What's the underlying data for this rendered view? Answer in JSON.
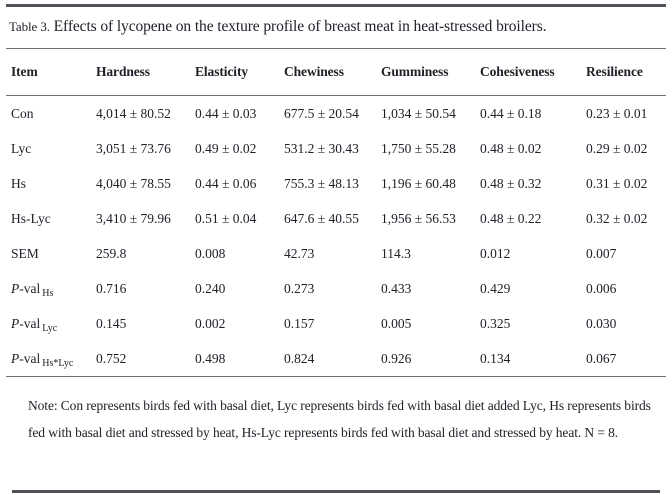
{
  "title": {
    "label": "Table 3.",
    "text": "Effects of lycopene on the texture profile of breast meat in heat-stressed broilers."
  },
  "table": {
    "columns": [
      "Item",
      "Hardness",
      "Elasticity",
      "Chewiness",
      "Gumminess",
      "Cohesiveness",
      "Resilience"
    ],
    "rows": [
      {
        "label": {
          "text": "Con"
        },
        "values": [
          "4,014 ± 80.52",
          "0.44 ± 0.03",
          "677.5 ± 20.54",
          "1,034 ± 50.54",
          "0.44 ± 0.18",
          "0.23 ± 0.01"
        ]
      },
      {
        "label": {
          "text": "Lyc"
        },
        "values": [
          "3,051 ± 73.76",
          "0.49 ± 0.02",
          "531.2 ± 30.43",
          "1,750 ± 55.28",
          "0.48 ± 0.02",
          "0.29 ± 0.02"
        ]
      },
      {
        "label": {
          "text": "Hs"
        },
        "values": [
          "4,040 ± 78.55",
          "0.44 ± 0.06",
          "755.3 ± 48.13",
          "1,196 ± 60.48",
          "0.48 ± 0.32",
          "0.31 ± 0.02"
        ]
      },
      {
        "label": {
          "text": "Hs-Lyc"
        },
        "values": [
          "3,410 ± 79.96",
          "0.51 ± 0.04",
          "647.6 ± 40.55",
          "1,956 ± 56.53",
          "0.48 ± 0.22",
          "0.32 ± 0.02"
        ]
      },
      {
        "label": {
          "text": "SEM"
        },
        "values": [
          "259.8",
          "0.008",
          "42.73",
          "114.3",
          "0.012",
          "0.007"
        ]
      },
      {
        "label": {
          "italic": "P",
          "text": "-val",
          "sub": "Hs"
        },
        "values": [
          "0.716",
          "0.240",
          "0.273",
          "0.433",
          "0.429",
          "0.006"
        ]
      },
      {
        "label": {
          "italic": "P",
          "text": "-val",
          "sub": "Lyc"
        },
        "values": [
          "0.145",
          "0.002",
          "0.157",
          "0.005",
          "0.325",
          "0.030"
        ]
      },
      {
        "label": {
          "italic": "P",
          "text": "-val",
          "sub": "Hs*Lyc"
        },
        "values": [
          "0.752",
          "0.498",
          "0.824",
          "0.926",
          "0.134",
          "0.067"
        ]
      }
    ]
  },
  "note": "Note: Con represents birds fed with basal diet, Lyc represents birds fed with basal diet added Lyc, Hs represents birds fed with basal diet and stressed by heat, Hs-Lyc represents birds fed with basal diet and stressed by heat. N = 8.",
  "colors": {
    "text": "#21212a",
    "rule_thick": "#515258",
    "rule_thin": "#6e6f74",
    "background": "#ffffff"
  }
}
